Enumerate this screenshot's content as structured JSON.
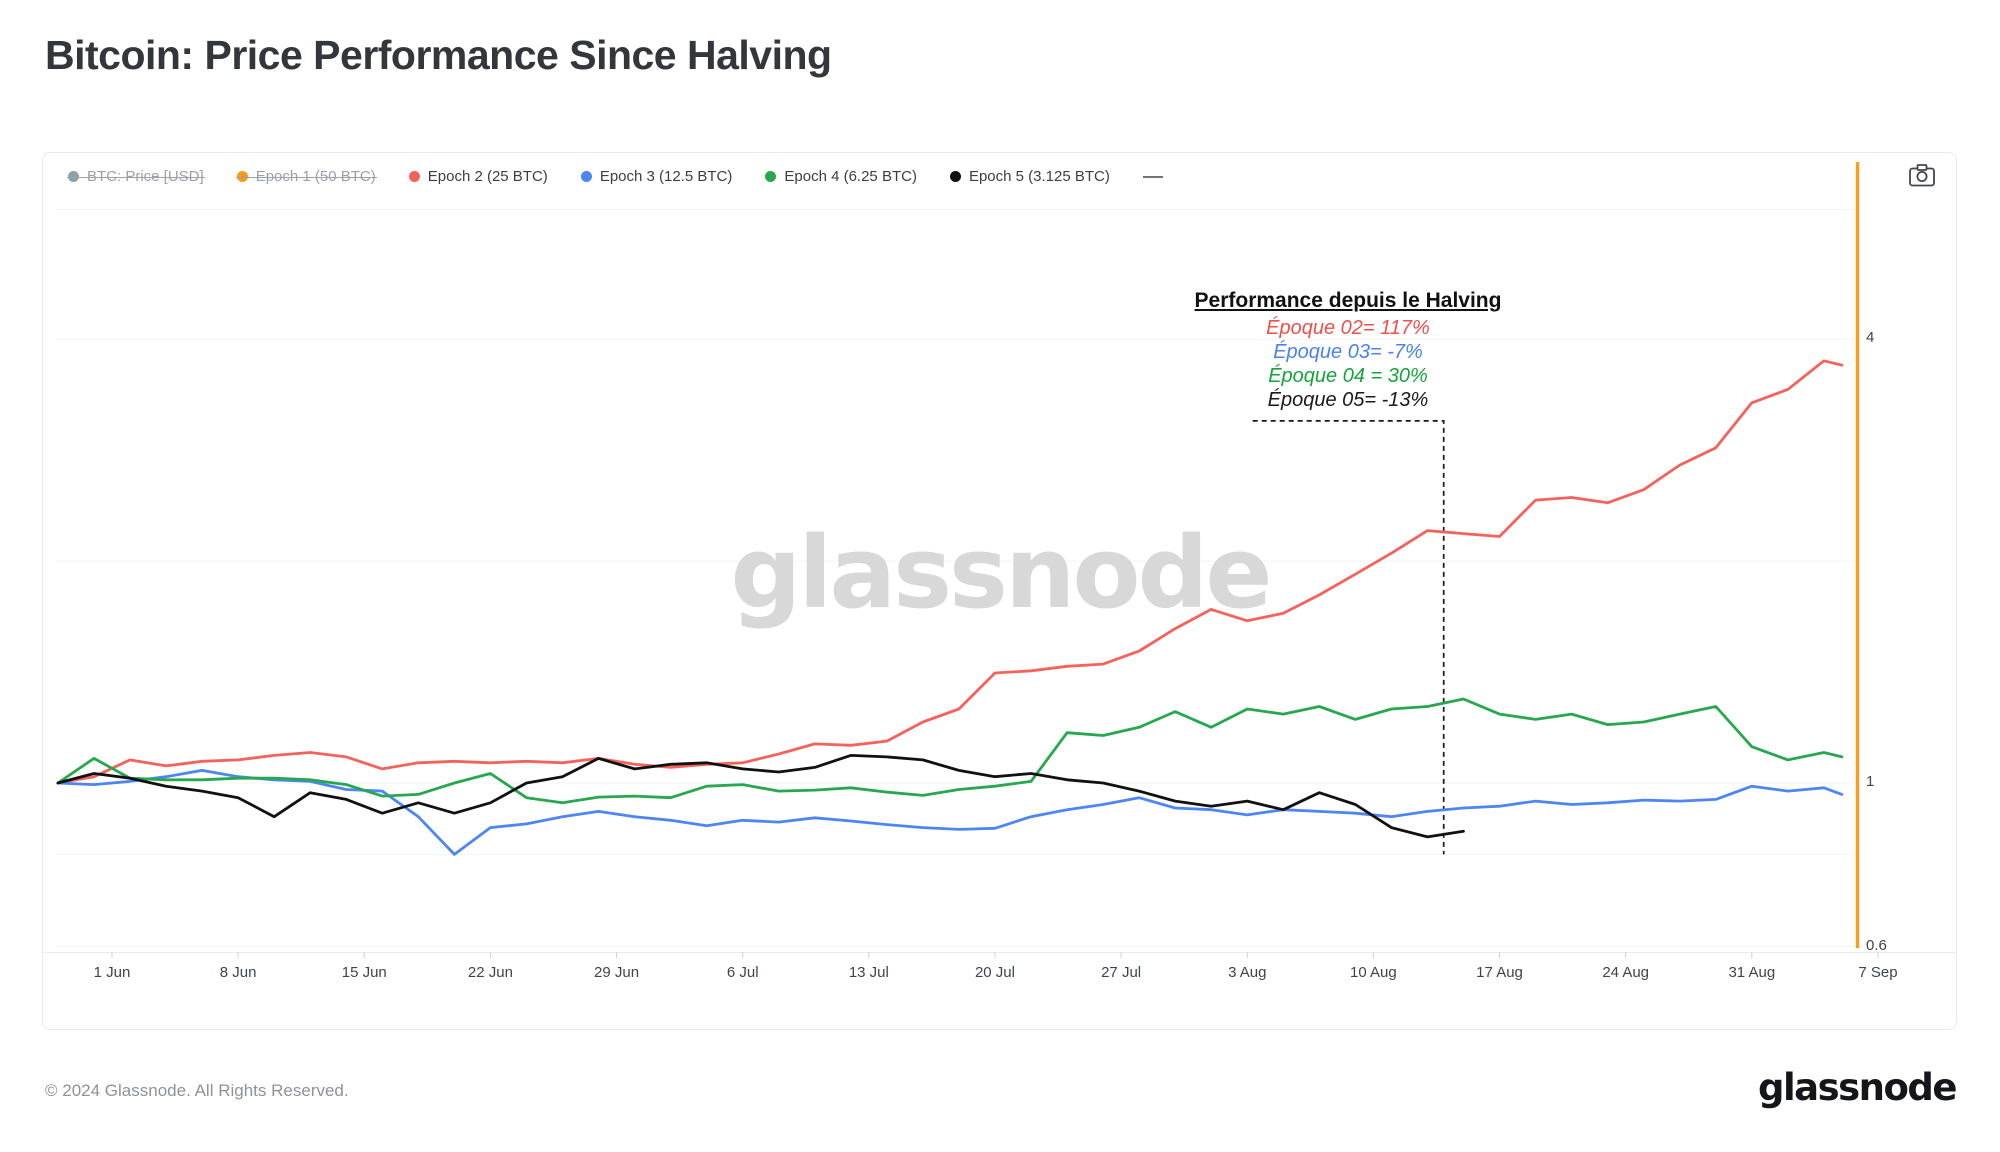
{
  "page": {
    "title": "Bitcoin: Price Performance Since Halving"
  },
  "legend": {
    "items": [
      {
        "label": "BTC: Price [USD]",
        "color": "#8ba0ab",
        "disabled": true
      },
      {
        "label": "Epoch 1 (50 BTC)",
        "color": "#f89b1c",
        "disabled": true
      },
      {
        "label": "Epoch 2 (25 BTC)",
        "color": "#f4625c",
        "disabled": false
      },
      {
        "label": "Epoch 3 (12.5 BTC)",
        "color": "#4d86f2",
        "disabled": false
      },
      {
        "label": "Epoch 4 (6.25 BTC)",
        "color": "#27a74e",
        "disabled": false
      },
      {
        "label": "Epoch 5 (3.125 BTC)",
        "color": "#111111",
        "disabled": false
      }
    ]
  },
  "toolbar": {
    "camera_icon": "camera"
  },
  "watermark": "glassnode",
  "annotation": {
    "title": "Performance depuis le Halving",
    "lines": [
      {
        "text": "Époque 02= 117%",
        "color": "#f0504a"
      },
      {
        "text": "Époque 03= -7%",
        "color": "#4a82f2"
      },
      {
        "text": "Époque 04 = 30%",
        "color": "#16a33c"
      },
      {
        "text": "Époque 05= -13%",
        "color": "#1a1a1a"
      }
    ]
  },
  "footer": {
    "copyright": "© 2024 Glassnode. All Rights Reserved.",
    "logo": "glassnode"
  },
  "chart_data": {
    "type": "line",
    "y_scale": "log",
    "title": "Bitcoin: Price Performance Since Halving",
    "x_tick_labels": [
      "1 Jun",
      "8 Jun",
      "15 Jun",
      "22 Jun",
      "29 Jun",
      "6 Jul",
      "13 Jul",
      "20 Jul",
      "27 Jul",
      "3 Aug",
      "10 Aug",
      "17 Aug",
      "24 Aug",
      "31 Aug",
      "7 Sep"
    ],
    "x_tick_days": [
      3,
      10,
      17,
      24,
      31,
      38,
      45,
      52,
      59,
      66,
      73,
      80,
      87,
      94,
      101
    ],
    "y_ticks": [
      {
        "label": "4",
        "value": 4
      },
      {
        "label": "1",
        "value": 1
      },
      {
        "label": "0.6",
        "value": 0.6
      }
    ],
    "gridline_values": [
      6,
      4,
      2,
      1,
      0.8,
      0.6
    ],
    "halving_line_color": "#f99d1c",
    "dashed_box": {
      "from_day": 66.3,
      "to_day": 76.9,
      "top_value": 3.1,
      "bottom_value": 0.8
    },
    "days": [
      0,
      2,
      4,
      6,
      8,
      10,
      12,
      14,
      16,
      18,
      20,
      22,
      24,
      26,
      28,
      30,
      32,
      34,
      36,
      38,
      40,
      42,
      44,
      46,
      48,
      50,
      52,
      54,
      56,
      58,
      60,
      62,
      64,
      66,
      68,
      70,
      72,
      74,
      76,
      78,
      80,
      82,
      84,
      86,
      88,
      90,
      92,
      94,
      96,
      98,
      99
    ],
    "series": [
      {
        "name": "BTC: Price [USD]",
        "color": "#8ba0ab",
        "disabled": true,
        "values": null
      },
      {
        "name": "Epoch 1 (50 BTC)",
        "color": "#f89b1c",
        "disabled": true,
        "values": null
      },
      {
        "name": "Epoch 2 (25 BTC)",
        "color": "#f4625c",
        "disabled": false,
        "values": [
          1.0,
          1.02,
          1.075,
          1.055,
          1.07,
          1.075,
          1.09,
          1.1,
          1.085,
          1.045,
          1.065,
          1.07,
          1.065,
          1.07,
          1.065,
          1.08,
          1.06,
          1.05,
          1.06,
          1.065,
          1.095,
          1.13,
          1.125,
          1.14,
          1.21,
          1.26,
          1.41,
          1.42,
          1.44,
          1.45,
          1.51,
          1.62,
          1.72,
          1.66,
          1.7,
          1.8,
          1.92,
          2.05,
          2.2,
          2.18,
          2.16,
          2.42,
          2.44,
          2.4,
          2.5,
          2.7,
          2.85,
          3.28,
          3.42,
          3.74,
          3.69
        ]
      },
      {
        "name": "Epoch 3 (12.5 BTC)",
        "color": "#4d86f2",
        "disabled": false,
        "values": [
          1.0,
          0.995,
          1.005,
          1.02,
          1.04,
          1.02,
          1.01,
          1.005,
          0.98,
          0.975,
          0.9,
          0.8,
          0.87,
          0.88,
          0.9,
          0.915,
          0.9,
          0.89,
          0.875,
          0.89,
          0.885,
          0.897,
          0.888,
          0.878,
          0.87,
          0.865,
          0.868,
          0.9,
          0.92,
          0.935,
          0.955,
          0.925,
          0.92,
          0.905,
          0.92,
          0.915,
          0.91,
          0.9,
          0.915,
          0.925,
          0.93,
          0.945,
          0.935,
          0.94,
          0.948,
          0.945,
          0.95,
          0.99,
          0.975,
          0.985,
          0.965
        ]
      },
      {
        "name": "Epoch 4 (6.25 BTC)",
        "color": "#27a74e",
        "disabled": false,
        "values": [
          1.0,
          1.08,
          1.015,
          1.01,
          1.01,
          1.015,
          1.015,
          1.01,
          0.995,
          0.96,
          0.965,
          1.0,
          1.03,
          0.955,
          0.94,
          0.957,
          0.96,
          0.955,
          0.99,
          0.995,
          0.975,
          0.978,
          0.985,
          0.972,
          0.962,
          0.98,
          0.99,
          1.005,
          1.17,
          1.16,
          1.19,
          1.25,
          1.19,
          1.26,
          1.24,
          1.27,
          1.22,
          1.26,
          1.27,
          1.3,
          1.24,
          1.22,
          1.24,
          1.2,
          1.21,
          1.24,
          1.27,
          1.12,
          1.075,
          1.1,
          1.085
        ]
      },
      {
        "name": "Epoch 5 (3.125 BTC)",
        "color": "#111111",
        "disabled": false,
        "values": [
          1.0,
          1.03,
          1.015,
          0.99,
          0.975,
          0.955,
          0.9,
          0.97,
          0.95,
          0.91,
          0.94,
          0.91,
          0.94,
          1.0,
          1.02,
          1.08,
          1.045,
          1.06,
          1.065,
          1.045,
          1.035,
          1.05,
          1.09,
          1.085,
          1.075,
          1.04,
          1.02,
          1.03,
          1.01,
          1.0,
          0.975,
          0.945,
          0.93,
          0.945,
          0.92,
          0.97,
          0.935,
          0.87,
          0.845,
          0.86,
          null,
          null,
          null,
          null,
          null,
          null,
          null,
          null,
          null,
          null,
          null
        ]
      }
    ]
  }
}
